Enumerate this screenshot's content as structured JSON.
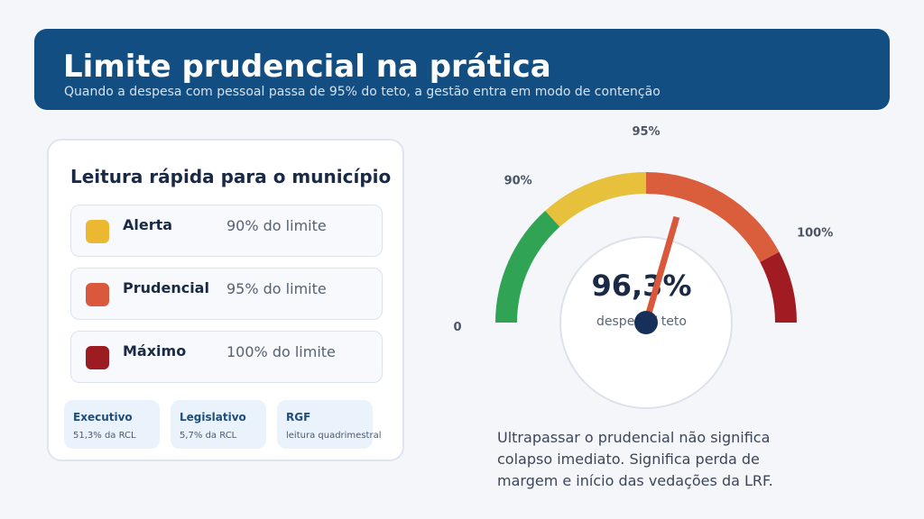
{
  "header": {
    "title": "Limite prudencial na prática",
    "subtitle": "Quando a despesa com pessoal passa de 95% do teto, a gestão entra em modo de contenção"
  },
  "card": {
    "title": "Leitura rápida para o município",
    "levels": [
      {
        "name": "Alerta",
        "value": "90% do limite",
        "color": "#ecb731"
      },
      {
        "name": "Prudencial",
        "value": "95% do limite",
        "color": "#da583b"
      },
      {
        "name": "Máximo",
        "value": "100% do limite",
        "color": "#9c1c22"
      }
    ],
    "chips": [
      {
        "title": "Executivo",
        "value": "51,3% da RCL"
      },
      {
        "title": "Legislativo",
        "value": "5,7% da RCL"
      },
      {
        "title": "RGF",
        "value": "leitura quadrimestral"
      }
    ]
  },
  "gauge": {
    "value": 96.3,
    "value_label": "96,3%",
    "caption": "despesa / teto",
    "ticks": [
      {
        "label": "0",
        "value": 0
      },
      {
        "label": "90%",
        "value": 90
      },
      {
        "label": "95%",
        "value": 95
      },
      {
        "label": "100%",
        "value": 100
      }
    ],
    "bands": [
      {
        "from": 0,
        "to": 90,
        "color": "#31a354"
      },
      {
        "from": 90,
        "to": 95,
        "color": "#e8c13c"
      },
      {
        "from": 95,
        "to": 100,
        "color": "#da5d3c"
      },
      {
        "from": 100,
        "to": 101.5,
        "color": "#a11c22"
      }
    ],
    "needle_color": "#d9573b",
    "hub_color": "#17305a"
  },
  "note": "Ultrapassar o prudencial não significa colapso imediato. Significa perda de margem e início das vedações da LRF."
}
